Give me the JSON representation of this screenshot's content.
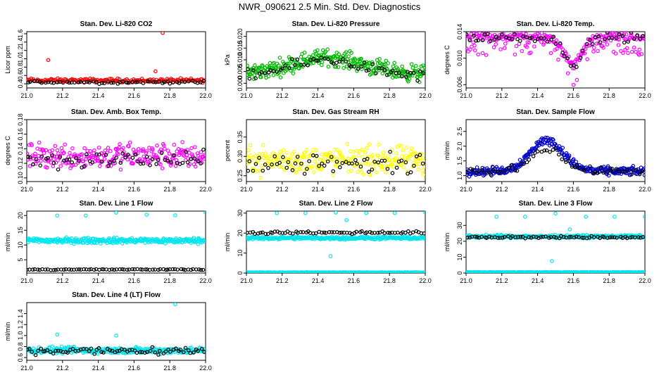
{
  "page": {
    "title": "NWR_090621  2.5 Min. Std. Dev. Diagnostics"
  },
  "colors": {
    "co2": "#ff0000",
    "pressure": "#00bb00",
    "temp": "#ff00ff",
    "box": "#ff00ff",
    "rh": "#ffff00",
    "flow": "#0000cc",
    "line": "#00e5ee",
    "black": "#000000"
  },
  "chart_data": [
    {
      "id": "co2",
      "type": "scatter",
      "title": "Stan. Dev. Li-820 CO2",
      "ylabel": "Licor ppm",
      "xlim": [
        21.0,
        22.0
      ],
      "ylim": [
        0.3,
        1.65
      ],
      "xticks": [
        "21.0",
        "21.2",
        "21.4",
        "21.6",
        "21.8",
        "22.0"
      ],
      "yticks": [
        "0.4",
        "0.6",
        "0.8",
        "1.0",
        "1.2",
        "1.4",
        "1.6"
      ],
      "color": "#ff0000",
      "series": [
        {
          "name": "main",
          "mean": 0.48,
          "spread": 0.04,
          "count": 170
        },
        {
          "name": "black",
          "mean": 0.44,
          "spread": 0.03,
          "count": 60
        }
      ],
      "outliers": [
        {
          "x": 21.12,
          "y": 0.97
        },
        {
          "x": 21.76,
          "y": 1.62
        },
        {
          "x": 21.72,
          "y": 0.7
        }
      ]
    },
    {
      "id": "pressure",
      "type": "scatter",
      "title": "Stan. Dev. Li-820 Pressure",
      "ylabel": "kPa",
      "xlim": [
        21.0,
        22.0
      ],
      "ylim": [
        -0.002,
        0.022
      ],
      "xticks": [
        "21.0",
        "21.2",
        "21.4",
        "21.6",
        "21.8",
        "22.0"
      ],
      "yticks": [
        "0.000",
        "0.005",
        "0.010",
        "0.015",
        "0.020"
      ],
      "color": "#00bb00",
      "series": [
        {
          "name": "main",
          "profile": "hump",
          "peak": 0.011,
          "base": 0.004,
          "spread": 0.003,
          "count": 300
        },
        {
          "name": "black",
          "profile": "hump",
          "peak": 0.01,
          "base": 0.003,
          "spread": 0.002,
          "count": 60
        }
      ]
    },
    {
      "id": "temp",
      "type": "scatter",
      "title": "Stan. Dev. Li-820 Temp.",
      "ylabel": "degrees C",
      "xlim": [
        21.0,
        22.0
      ],
      "ylim": [
        0.0055,
        0.014
      ],
      "xticks": [
        "21.0",
        "21.2",
        "21.4",
        "21.6",
        "21.8",
        "22.0"
      ],
      "yticks": [
        "0.006",
        "0.010",
        "0.014"
      ],
      "color": "#ff00ff",
      "series": [
        {
          "name": "main",
          "profile": "dip",
          "base": 0.0132,
          "spread": 0.0006,
          "count": 260
        },
        {
          "name": "black",
          "profile": "dip",
          "base": 0.0131,
          "spread": 0.0006,
          "count": 60
        }
      ]
    },
    {
      "id": "box",
      "type": "scatter",
      "title": "Stan. Dev. Amb. Box Temp.",
      "ylabel": "degrees C",
      "xlim": [
        21.0,
        22.0
      ],
      "ylim": [
        0.095,
        0.18
      ],
      "xticks": [
        "21.0",
        "21.2",
        "21.4",
        "21.6",
        "21.8",
        "22.0"
      ],
      "yticks": [
        "0.10",
        "0.12",
        "0.14",
        "0.16",
        "0.18"
      ],
      "color": "#ff00ff",
      "series": [
        {
          "name": "main",
          "mean": 0.13,
          "spread": 0.015,
          "count": 260
        },
        {
          "name": "black",
          "mean": 0.125,
          "spread": 0.01,
          "count": 60
        }
      ]
    },
    {
      "id": "rh",
      "type": "scatter",
      "title": "Stan. Dev. Gas Stream RH",
      "ylabel": "percent",
      "xlim": [
        21.0,
        22.0
      ],
      "ylim": [
        0.235,
        0.395
      ],
      "xticks": [
        "21.0",
        "21.2",
        "21.4",
        "21.6",
        "21.8",
        "22.0"
      ],
      "yticks": [
        "0.25",
        "0.30",
        "0.35"
      ],
      "color": "#ffff00",
      "series": [
        {
          "name": "main",
          "mean": 0.29,
          "spread": 0.03,
          "count": 260
        },
        {
          "name": "black",
          "mean": 0.28,
          "spread": 0.025,
          "count": 60
        }
      ]
    },
    {
      "id": "flow",
      "type": "scatter",
      "title": "Stan. Dev. Sample Flow",
      "ylabel": "ml/min",
      "xlim": [
        21.0,
        22.0
      ],
      "ylim": [
        0.8,
        2.9
      ],
      "xticks": [
        "21.0",
        "21.2",
        "21.4",
        "21.6",
        "21.8",
        "22.0"
      ],
      "yticks": [
        "1.0",
        "1.5",
        "2.0",
        "2.5"
      ],
      "color": "#0000cc",
      "series": [
        {
          "name": "main",
          "profile": "peak",
          "base": 1.15,
          "peak": 2.2,
          "spread": 0.12,
          "count": 300
        },
        {
          "name": "black",
          "profile": "peak",
          "base": 1.15,
          "peak": 1.9,
          "spread": 0.1,
          "count": 60
        }
      ]
    },
    {
      "id": "line1",
      "type": "scatter",
      "title": "Stan. Dev. Line 1 Flow",
      "ylabel": "ml/min",
      "xlim": [
        21.0,
        22.0
      ],
      "ylim": [
        0.5,
        21.5
      ],
      "xticks": [
        "21.0",
        "21.2",
        "21.4",
        "21.6",
        "21.8",
        "22.0"
      ],
      "yticks": [
        "5",
        "10",
        "15",
        "20"
      ],
      "color": "#00e5ee",
      "series": [
        {
          "name": "main",
          "mean": 11.5,
          "spread": 0.8,
          "count": 300
        },
        {
          "name": "black",
          "mean": 1.7,
          "spread": 0.15,
          "count": 70
        }
      ],
      "outliers": [
        {
          "x": 21.17,
          "y": 20.0
        },
        {
          "x": 21.33,
          "y": 20.0
        },
        {
          "x": 21.5,
          "y": 21.0
        },
        {
          "x": 21.67,
          "y": 20.3
        },
        {
          "x": 21.83,
          "y": 20.1
        },
        {
          "x": 22.0,
          "y": 21.0
        }
      ]
    },
    {
      "id": "line2",
      "type": "scatter",
      "title": "Stan. Dev. Line 2 Flow",
      "ylabel": "ml/min",
      "xlim": [
        21.0,
        22.0
      ],
      "ylim": [
        0,
        31
      ],
      "xticks": [
        "21.0",
        "21.2",
        "21.4",
        "21.6",
        "21.8",
        "22.0"
      ],
      "yticks": [
        "0",
        "10",
        "20",
        "30"
      ],
      "color": "#00e5ee",
      "series": [
        {
          "name": "main",
          "mean": 17.5,
          "spread": 0.6,
          "count": 260
        },
        {
          "name": "baseline",
          "mean": 0.3,
          "spread": 0.1,
          "count": 200
        },
        {
          "name": "black",
          "mean": 20.3,
          "spread": 0.6,
          "count": 70
        }
      ],
      "outliers": [
        {
          "x": 21.17,
          "y": 30.0
        },
        {
          "x": 21.33,
          "y": 30.0
        },
        {
          "x": 21.5,
          "y": 30.3
        },
        {
          "x": 21.67,
          "y": 30.0
        },
        {
          "x": 21.83,
          "y": 30.0
        },
        {
          "x": 22.0,
          "y": 30.3
        },
        {
          "x": 21.47,
          "y": 8.5
        },
        {
          "x": 21.56,
          "y": 26.5
        }
      ]
    },
    {
      "id": "line3",
      "type": "scatter",
      "title": "Stan. Dev. Line 3 Flow",
      "ylabel": "ml/min",
      "xlim": [
        21.0,
        22.0
      ],
      "ylim": [
        0,
        39
      ],
      "xticks": [
        "21.0",
        "21.2",
        "21.4",
        "21.6",
        "21.8",
        "22.0"
      ],
      "yticks": [
        "0",
        "10",
        "20",
        "30"
      ],
      "color": "#00e5ee",
      "series": [
        {
          "name": "main",
          "mean": 23,
          "spread": 0.8,
          "count": 260
        },
        {
          "name": "baseline",
          "mean": 0.5,
          "spread": 0.1,
          "count": 200
        },
        {
          "name": "black",
          "mean": 22.5,
          "spread": 0.6,
          "count": 70
        }
      ],
      "outliers": [
        {
          "x": 21.17,
          "y": 35.5
        },
        {
          "x": 21.33,
          "y": 35.5
        },
        {
          "x": 21.5,
          "y": 37.5
        },
        {
          "x": 21.67,
          "y": 35.5
        },
        {
          "x": 21.83,
          "y": 35.5
        },
        {
          "x": 22.0,
          "y": 35.5
        },
        {
          "x": 21.48,
          "y": 7.5
        },
        {
          "x": 21.58,
          "y": 27.5
        }
      ]
    },
    {
      "id": "line4",
      "type": "scatter",
      "title": "Stan. Dev. Line 4 (LT) Flow",
      "ylabel": "ml/min",
      "xlim": [
        21.0,
        22.0
      ],
      "ylim": [
        0.55,
        1.6
      ],
      "xticks": [
        "21.0",
        "21.2",
        "21.4",
        "21.6",
        "21.8",
        "22.0"
      ],
      "yticks": [
        "0.6",
        "0.8",
        "1.0",
        "1.2",
        "1.4"
      ],
      "color": "#00e5ee",
      "series": [
        {
          "name": "main",
          "mean": 0.73,
          "spread": 0.05,
          "count": 280
        },
        {
          "name": "black",
          "mean": 0.72,
          "spread": 0.06,
          "count": 70
        }
      ],
      "outliers": [
        {
          "x": 21.83,
          "y": 1.57
        },
        {
          "x": 21.17,
          "y": 1.02
        },
        {
          "x": 21.5,
          "y": 1.0
        }
      ]
    }
  ]
}
